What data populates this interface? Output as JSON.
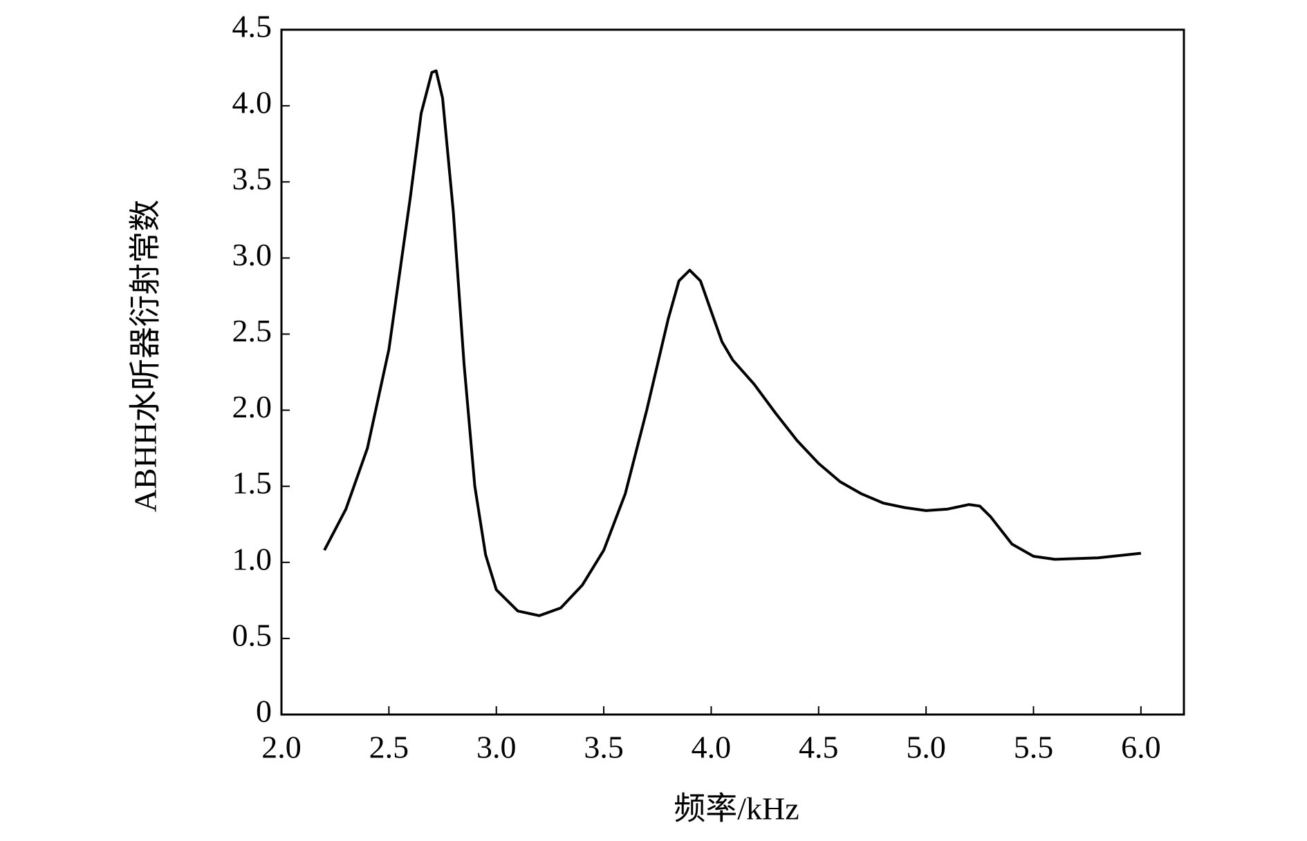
{
  "chart_data": {
    "type": "line",
    "xlabel": "频率/kHz",
    "ylabel": "ABHH水听器衍射常数",
    "x": [
      2.2,
      2.3,
      2.4,
      2.5,
      2.6,
      2.65,
      2.7,
      2.72,
      2.75,
      2.8,
      2.85,
      2.9,
      2.95,
      3.0,
      3.1,
      3.2,
      3.3,
      3.4,
      3.5,
      3.6,
      3.7,
      3.8,
      3.85,
      3.9,
      3.95,
      4.0,
      4.05,
      4.1,
      4.2,
      4.3,
      4.4,
      4.5,
      4.6,
      4.7,
      4.8,
      4.9,
      5.0,
      5.1,
      5.2,
      5.25,
      5.3,
      5.4,
      5.5,
      5.6,
      5.8,
      6.0
    ],
    "series": [
      {
        "color": "#000000",
        "values": [
          1.08,
          1.35,
          1.75,
          2.4,
          3.4,
          3.95,
          4.22,
          4.23,
          4.05,
          3.3,
          2.3,
          1.5,
          1.05,
          0.82,
          0.68,
          0.65,
          0.7,
          0.85,
          1.08,
          1.45,
          2.0,
          2.6,
          2.85,
          2.92,
          2.85,
          2.65,
          2.45,
          2.33,
          2.17,
          1.98,
          1.8,
          1.65,
          1.53,
          1.45,
          1.39,
          1.36,
          1.34,
          1.35,
          1.38,
          1.37,
          1.3,
          1.12,
          1.04,
          1.02,
          1.03,
          1.06
        ]
      }
    ],
    "xlim": [
      2.0,
      6.2
    ],
    "ylim": [
      0,
      4.5
    ],
    "xticks": [
      {
        "value": 2.0,
        "label": "2.0"
      },
      2.5,
      {
        "value": 3.0,
        "label": "3.0"
      },
      3.5,
      {
        "value": 4.0,
        "label": "4.0"
      },
      4.5,
      {
        "value": 5.0,
        "label": "5.0"
      },
      5.5,
      {
        "value": 6.0,
        "label": "6.0"
      }
    ],
    "yticks": [
      0,
      0.5,
      {
        "value": 1.0,
        "label": "1.0"
      },
      1.5,
      {
        "value": 2.0,
        "label": "2.0"
      },
      2.5,
      {
        "value": 3.0,
        "label": "3.0"
      },
      3.5,
      {
        "value": 4.0,
        "label": "4.0"
      },
      4.5
    ]
  }
}
